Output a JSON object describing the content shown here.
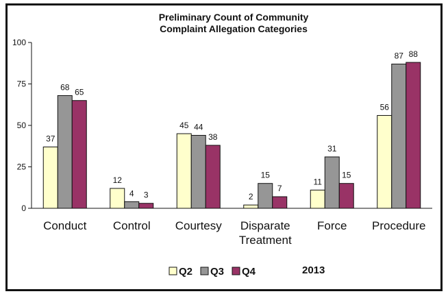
{
  "chart_data": {
    "type": "bar",
    "title_lines": [
      "Preliminary Count of Community",
      "Complaint Allegation Categories"
    ],
    "categories": [
      [
        "Conduct"
      ],
      [
        "Control"
      ],
      [
        "Courtesy"
      ],
      [
        "Disparate",
        "Treatment"
      ],
      [
        "Force"
      ],
      [
        "Procedure"
      ]
    ],
    "series": [
      {
        "name": "Q2",
        "color": "#ffffcc",
        "values": [
          37,
          12,
          45,
          2,
          11,
          56
        ]
      },
      {
        "name": "Q3",
        "color": "#969696",
        "values": [
          68,
          4,
          44,
          15,
          31,
          87
        ]
      },
      {
        "name": "Q4",
        "color": "#993366",
        "values": [
          65,
          3,
          38,
          7,
          15,
          88
        ]
      }
    ],
    "ylim": [
      0,
      100
    ],
    "yticks": [
      0,
      25,
      50,
      75,
      100
    ],
    "legend_position": "bottom",
    "legend_note": "2013",
    "grid": false
  }
}
